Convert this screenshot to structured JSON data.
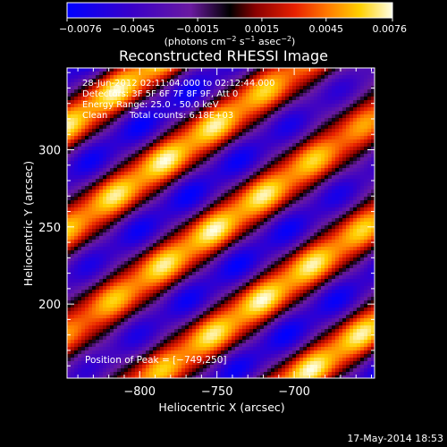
{
  "chart_data": {
    "type": "heatmap",
    "title": "Reconstructed RHESSI Image",
    "xlabel": "Heliocentric X (arcsec)",
    "ylabel": "Heliocentric Y (arcsec)",
    "x_ticks": [
      -800,
      -750,
      -700
    ],
    "y_ticks": [
      200,
      250,
      300
    ],
    "x_tick_labels": [
      "−800",
      "−750",
      "−700"
    ],
    "y_tick_labels": [
      "200",
      "250",
      "300"
    ],
    "xlim": [
      -847,
      -648
    ],
    "ylim": [
      152,
      353
    ],
    "colorbar": {
      "range": [
        -0.0076,
        0.0076
      ],
      "ticks": [
        -0.0076,
        -0.0045,
        -0.0015,
        0.0015,
        0.0045,
        0.0076
      ],
      "tick_labels": [
        "−0.0076",
        "−0.0045",
        "−0.0015",
        "0.0015",
        "0.0045",
        "0.0076"
      ],
      "unit_prefix": "(photons cm",
      "unit_exp1": "−2",
      "unit_mid": " s",
      "unit_exp2": "−1",
      "unit_mid2": " asec",
      "unit_exp3": "−2",
      "unit_suffix": ")",
      "colors": [
        "#0000ff",
        "#3a00c8",
        "#6a1aa0",
        "#000000",
        "#8a0000",
        "#e82000",
        "#ff7a00",
        "#ffd000",
        "#ffffe8"
      ]
    },
    "peak": [
      -749,
      250
    ],
    "peak_value": 0.0076,
    "band_slope": 0.7,
    "fringe_period": 55
  },
  "annotations": {
    "time_range": "28-Jun-2012 02:11:04.000 to 02:12:44.000",
    "detectors": "Detectors: 3F 5F 6F 7F 8F 9F, Att 0",
    "energy": "Energy Range: 25.0 - 50.0 keV",
    "clean_label": "Clean",
    "total_counts": "Total counts: 6.18E+03",
    "peak_position": "Position of Peak = [−749,250]",
    "date_stamp": "17-May-2014 18:53"
  }
}
